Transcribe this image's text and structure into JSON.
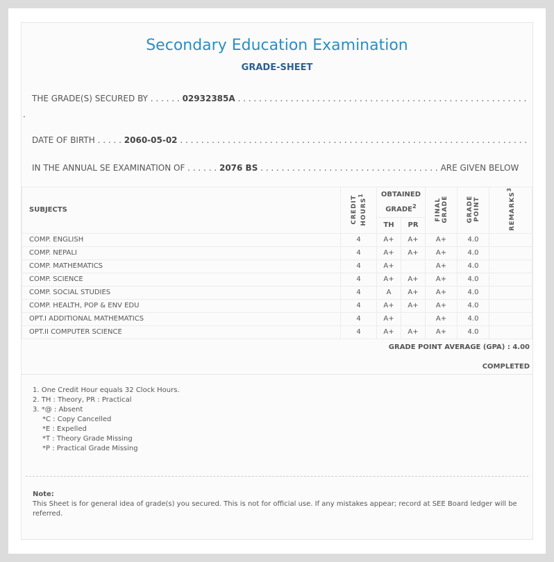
{
  "title": "Secondary Education Examination",
  "subtitle": "GRADE-SHEET",
  "secured": {
    "label": "THE GRADE(S) SECURED BY . . . . . .",
    "value": "02932385A",
    "dots": ". . . . . . . . . . . . . . . . . . . . . . . . . . . . . . . . . . . . . . . . . . . . . . . . . . . . . . . . . . . . . . . . . . . . . . . . ."
  },
  "dob": {
    "label": "DATE OF BIRTH . . . . .",
    "value": "2060-05-02",
    "dots": ". . . . . . . . . . . . . . . . . . . . . . . . . . . . . . . . . . . . . . . . . . . . . . . . . . . . . . . . . . . . . . . . . . . . . . . . . . . ."
  },
  "exam": {
    "label": "IN THE ANNUAL SE EXAMINATION OF . . . . . .",
    "value": "2076 BS",
    "dots": ". . . . . . . . . . . . . . . . . . . . . . . . . . . . . . . . . .",
    "tail": "ARE GIVEN BELOW"
  },
  "table": {
    "headers": {
      "subjects": "SUBJECTS",
      "credit": "CREDIT HOURS",
      "credit_sup": "1",
      "obtained": "OBTAINED GRADE",
      "obtained_sup": "2",
      "th": "TH",
      "pr": "PR",
      "final": "FINAL GRADE",
      "point": "GRADE POINT",
      "remarks": "REMARKS",
      "remarks_sup": "3"
    },
    "rows": [
      {
        "subject": "COMP. ENGLISH",
        "credit": "4",
        "th": "A+",
        "pr": "A+",
        "final": "A+",
        "point": "4.0",
        "remarks": ""
      },
      {
        "subject": "COMP. NEPALI",
        "credit": "4",
        "th": "A+",
        "pr": "A+",
        "final": "A+",
        "point": "4.0",
        "remarks": ""
      },
      {
        "subject": "COMP. MATHEMATICS",
        "credit": "4",
        "th": "A+",
        "pr": "",
        "final": "A+",
        "point": "4.0",
        "remarks": ""
      },
      {
        "subject": "COMP. SCIENCE",
        "credit": "4",
        "th": "A+",
        "pr": "A+",
        "final": "A+",
        "point": "4.0",
        "remarks": ""
      },
      {
        "subject": "COMP. SOCIAL STUDIES",
        "credit": "4",
        "th": "A",
        "pr": "A+",
        "final": "A+",
        "point": "4.0",
        "remarks": ""
      },
      {
        "subject": "COMP. HEALTH, POP & ENV EDU",
        "credit": "4",
        "th": "A+",
        "pr": "A+",
        "final": "A+",
        "point": "4.0",
        "remarks": ""
      },
      {
        "subject": "OPT.I ADDITIONAL MATHEMATICS",
        "credit": "4",
        "th": "A+",
        "pr": "",
        "final": "A+",
        "point": "4.0",
        "remarks": ""
      },
      {
        "subject": "OPT.II COMPUTER SCIENCE",
        "credit": "4",
        "th": "A+",
        "pr": "A+",
        "final": "A+",
        "point": "4.0",
        "remarks": ""
      }
    ]
  },
  "gpa": "GRADE POINT AVERAGE (GPA) : 4.00",
  "status": "COMPLETED",
  "footnotes": [
    "1. One Credit Hour equals 32 Clock Hours.",
    "2. TH : Theory, PR : Practical",
    "3. *@ : Absent",
    "*C : Copy Cancelled",
    "*E : Expelled",
    "*T : Theory Grade Missing",
    "*P : Practical Grade Missing"
  ],
  "note": {
    "title": "Note:",
    "text": "This Sheet is for general idea of grade(s) you secured. This is not for official use. If any mistakes appear; record at SEE Board ledger will be referred."
  },
  "colors": {
    "title": "#2a8ec4",
    "subtitle": "#2d5f93"
  }
}
